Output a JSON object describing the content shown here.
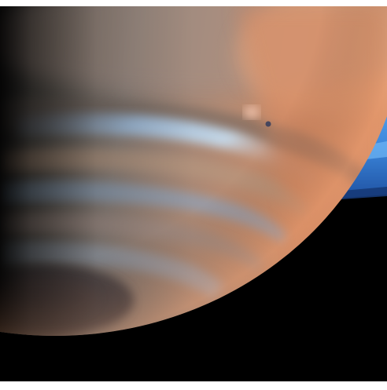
{
  "image": {
    "subject": "planet-saturn-closeup",
    "colors": {
      "space": "#000000",
      "frame_border": "#ffffff",
      "limb_orange": "#d48a63",
      "band_tan": "#b9927a",
      "band_blue": "#8fb3d6",
      "shadow_gray": "#4b4a4c",
      "ring_blue": "#3c8fe6",
      "ring_dark": "#1f4f9e"
    }
  }
}
